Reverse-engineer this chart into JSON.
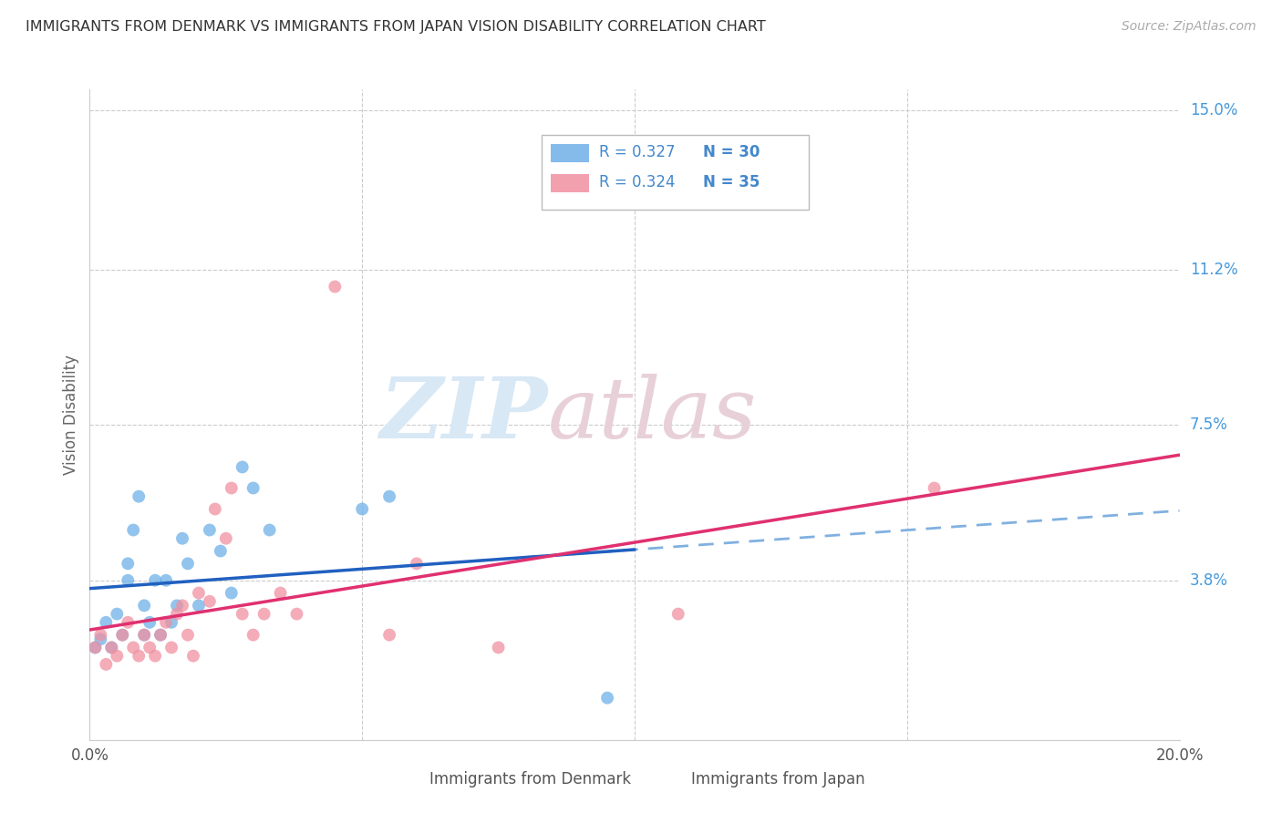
{
  "title": "IMMIGRANTS FROM DENMARK VS IMMIGRANTS FROM JAPAN VISION DISABILITY CORRELATION CHART",
  "source": "Source: ZipAtlas.com",
  "ylabel": "Vision Disability",
  "xlim": [
    0.0,
    0.2
  ],
  "ylim": [
    0.0,
    0.155
  ],
  "ytick_values": [
    0.0,
    0.038,
    0.075,
    0.112,
    0.15
  ],
  "ytick_labels": [
    "",
    "3.8%",
    "7.5%",
    "11.2%",
    "15.0%"
  ],
  "r_denmark": 0.327,
  "n_denmark": 30,
  "r_japan": 0.324,
  "n_japan": 35,
  "color_denmark": "#6eb0e8",
  "color_japan": "#f090a0",
  "trendline_denmark_solid_color": "#2060c0",
  "trendline_denmark_dashed_color": "#80b0e0",
  "trendline_japan_color": "#e03070",
  "watermark_zip": "ZIP",
  "watermark_atlas": "atlas",
  "denmark_x": [
    0.001,
    0.002,
    0.003,
    0.004,
    0.005,
    0.006,
    0.007,
    0.007,
    0.008,
    0.009,
    0.01,
    0.01,
    0.011,
    0.012,
    0.013,
    0.014,
    0.015,
    0.016,
    0.017,
    0.018,
    0.02,
    0.022,
    0.024,
    0.026,
    0.028,
    0.03,
    0.033,
    0.05,
    0.055,
    0.095
  ],
  "denmark_y": [
    0.022,
    0.024,
    0.028,
    0.022,
    0.03,
    0.025,
    0.038,
    0.042,
    0.05,
    0.058,
    0.025,
    0.032,
    0.028,
    0.038,
    0.025,
    0.038,
    0.028,
    0.032,
    0.048,
    0.042,
    0.032,
    0.05,
    0.045,
    0.035,
    0.065,
    0.06,
    0.05,
    0.055,
    0.058,
    0.01
  ],
  "japan_x": [
    0.001,
    0.002,
    0.003,
    0.004,
    0.005,
    0.006,
    0.007,
    0.008,
    0.009,
    0.01,
    0.011,
    0.012,
    0.013,
    0.014,
    0.015,
    0.016,
    0.017,
    0.018,
    0.019,
    0.02,
    0.022,
    0.023,
    0.025,
    0.026,
    0.028,
    0.03,
    0.032,
    0.035,
    0.038,
    0.045,
    0.055,
    0.06,
    0.075,
    0.108,
    0.155
  ],
  "japan_y": [
    0.022,
    0.025,
    0.018,
    0.022,
    0.02,
    0.025,
    0.028,
    0.022,
    0.02,
    0.025,
    0.022,
    0.02,
    0.025,
    0.028,
    0.022,
    0.03,
    0.032,
    0.025,
    0.02,
    0.035,
    0.033,
    0.055,
    0.048,
    0.06,
    0.03,
    0.025,
    0.03,
    0.035,
    0.03,
    0.108,
    0.025,
    0.042,
    0.022,
    0.03,
    0.06
  ],
  "trendline_solid_end_x": 0.1,
  "legend_r_color": "#4488cc",
  "legend_n_color": "#4488cc"
}
